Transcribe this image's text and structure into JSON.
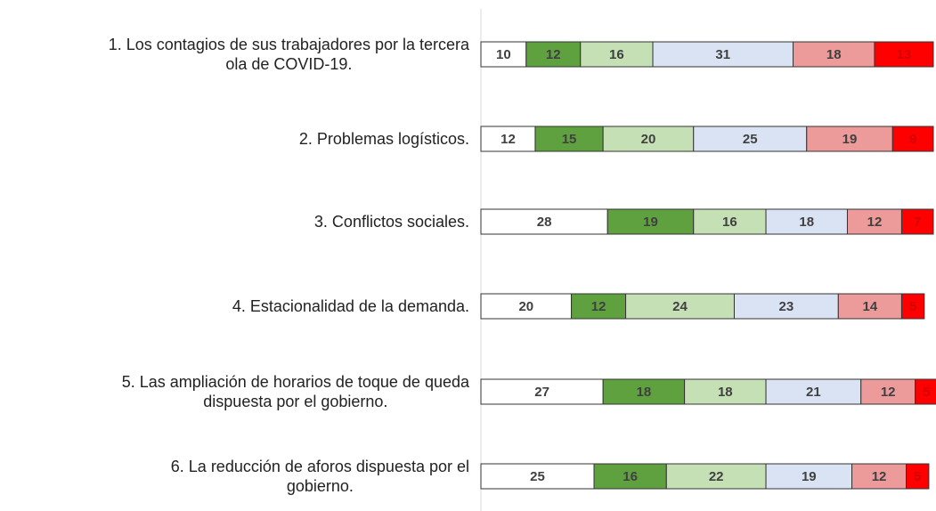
{
  "chart_data": {
    "type": "stacked_bar_horizontal",
    "categories": [
      "1. Los contagios de sus trabajadores por la tercera\nola de COVID-19.",
      "2. Problemas logísticos.",
      "3. Conflictos sociales.",
      "4. Estacionalidad de la demanda.",
      "5. Las ampliación de horarios de toque de queda\ndispuesta por el gobierno.",
      "6. La reducción de aforos dispuesta por el\ngobierno."
    ],
    "series": [
      {
        "color": "#ffffff",
        "label_color": "#404040",
        "values": [
          10,
          12,
          28,
          20,
          27,
          25
        ]
      },
      {
        "color": "#5fa03f",
        "label_color": "#404040",
        "values": [
          12,
          15,
          19,
          12,
          18,
          16
        ]
      },
      {
        "color": "#c5e0b4",
        "label_color": "#404040",
        "values": [
          16,
          20,
          16,
          24,
          18,
          22
        ]
      },
      {
        "color": "#dae3f3",
        "label_color": "#404040",
        "values": [
          31,
          25,
          18,
          23,
          21,
          19
        ]
      },
      {
        "color": "#ec9a9a",
        "label_color": "#404040",
        "values": [
          18,
          19,
          12,
          14,
          12,
          12
        ]
      },
      {
        "color": "#ff0000",
        "label_color": "#d40000",
        "values": [
          13,
          9,
          7,
          5,
          5,
          5
        ]
      }
    ],
    "xlim": [
      0,
      100
    ]
  }
}
